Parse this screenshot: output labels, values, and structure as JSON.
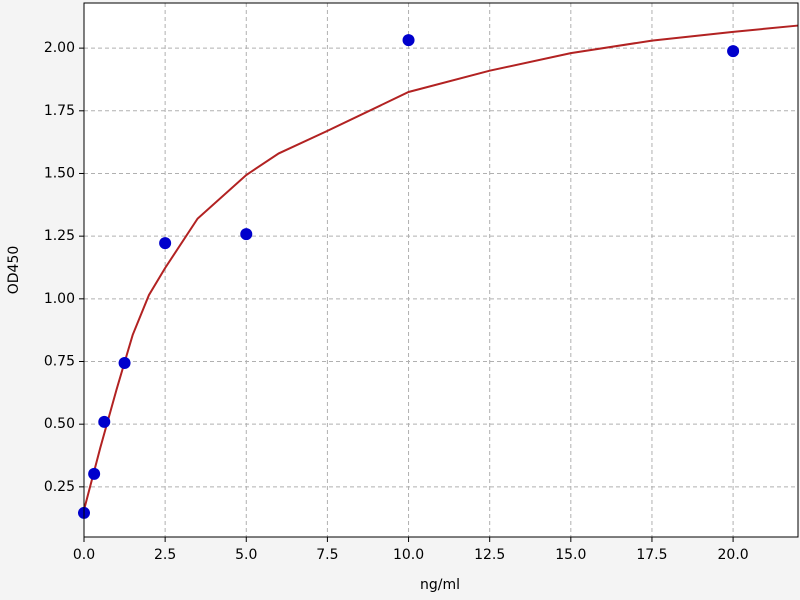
{
  "chart_data": {
    "type": "scatter",
    "xlabel": "ng/ml",
    "ylabel": "OD450",
    "xlim": [
      0,
      22
    ],
    "ylim": [
      0.05,
      2.18
    ],
    "grid": true,
    "xticks": [
      {
        "value": 0,
        "label": "0.0"
      },
      {
        "value": 2.5,
        "label": "2.5"
      },
      {
        "value": 5,
        "label": "5.0"
      },
      {
        "value": 7.5,
        "label": "7.5"
      },
      {
        "value": 10,
        "label": "10.0"
      },
      {
        "value": 12.5,
        "label": "12.5"
      },
      {
        "value": 15,
        "label": "15.0"
      },
      {
        "value": 17.5,
        "label": "17.5"
      },
      {
        "value": 20,
        "label": "20.0"
      }
    ],
    "yticks": [
      0.25,
      {
        "value": 0.5,
        "label": "0.50"
      },
      0.75,
      {
        "value": 1,
        "label": "1.00"
      },
      1.25,
      {
        "value": 1.5,
        "label": "1.50"
      },
      1.75,
      {
        "value": 2,
        "label": "2.00"
      }
    ],
    "series": [
      {
        "kind": "line",
        "color": "#b22222",
        "x": [
          0,
          0.5,
          1,
          1.5,
          2,
          2.5,
          3.5,
          5,
          6,
          7.5,
          10,
          12.5,
          15,
          17.5,
          20,
          22
        ],
        "values": [
          0.158,
          0.405,
          0.637,
          0.856,
          1.015,
          1.123,
          1.32,
          1.494,
          1.58,
          1.67,
          1.825,
          1.91,
          1.98,
          2.03,
          2.065,
          2.09
        ]
      },
      {
        "kind": "points",
        "color": "#0000cc",
        "x": [
          0,
          0.3125,
          0.625,
          1.25,
          2.5,
          5,
          10,
          20
        ],
        "values": [
          0.146,
          0.302,
          0.509,
          0.744,
          1.222,
          1.258,
          2.032,
          1.988
        ]
      }
    ]
  }
}
